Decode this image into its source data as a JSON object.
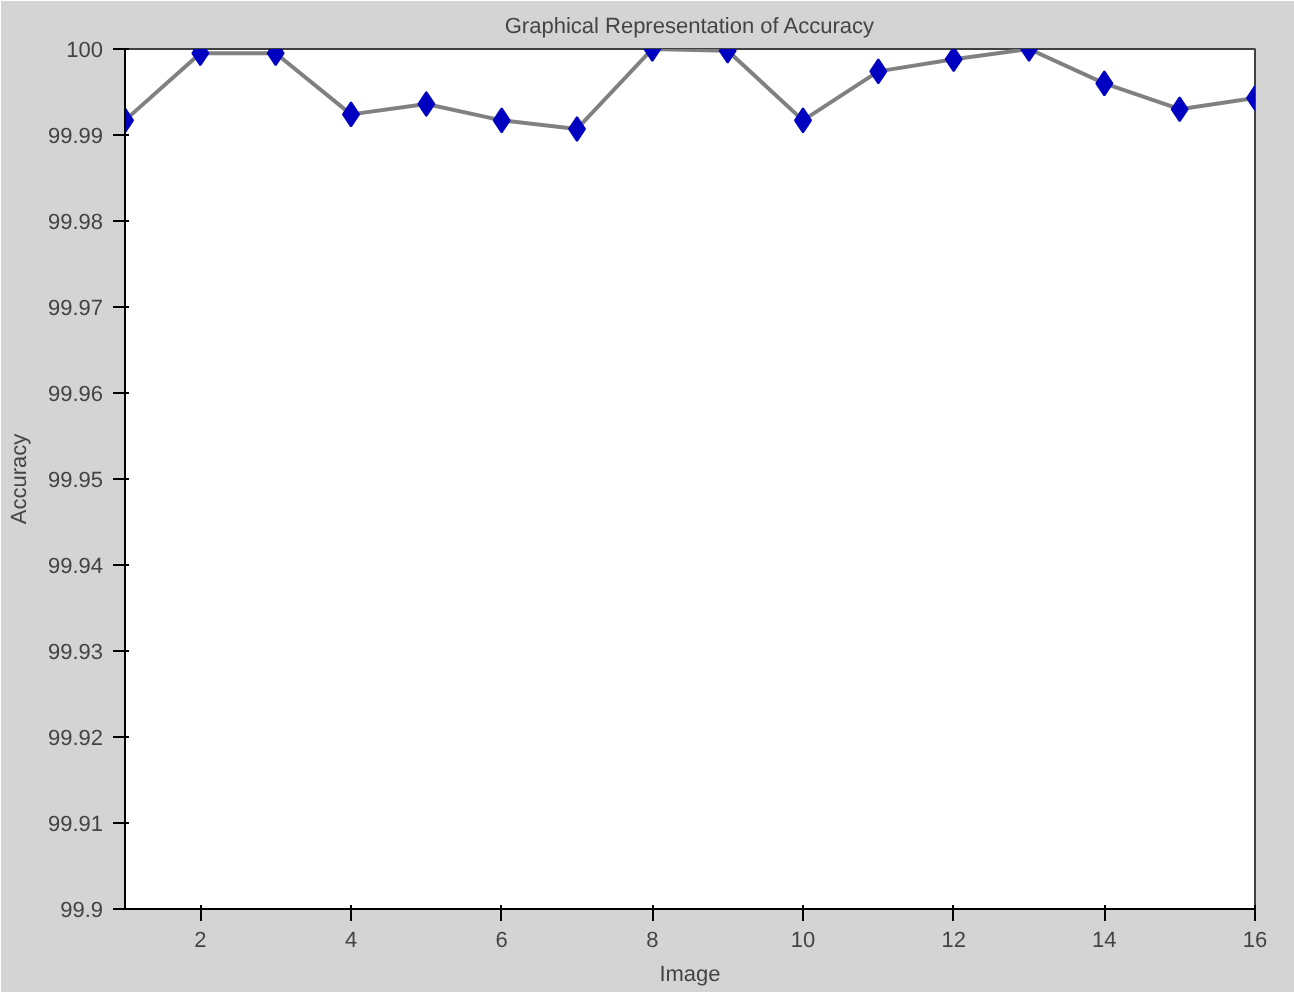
{
  "chart_data": {
    "type": "line",
    "title": "Graphical Representation of Accuracy",
    "xlabel": "Image",
    "ylabel": "Accuracy",
    "x": [
      1,
      2,
      3,
      4,
      5,
      6,
      7,
      8,
      9,
      10,
      11,
      12,
      13,
      14,
      15,
      16
    ],
    "series": [
      {
        "color": "#0000c0",
        "values": [
          99.9917,
          99.9995,
          99.9995,
          99.9924,
          99.9936,
          99.9917,
          99.9907,
          100,
          99.9998,
          99.9917,
          99.9974,
          99.9988,
          100,
          99.996,
          99.993,
          99.9943
        ]
      }
    ],
    "xlim": [
      1,
      16
    ],
    "xticks": [
      2,
      4,
      6,
      8,
      10,
      12,
      14,
      16
    ],
    "ylim": [
      99.9,
      100
    ],
    "yticks": [
      99.9,
      99.91,
      99.92,
      99.93,
      99.94,
      99.95,
      99.96,
      99.97,
      99.98,
      99.99,
      100
    ],
    "marker": "diamond",
    "grid": false,
    "line_style": "solid"
  }
}
